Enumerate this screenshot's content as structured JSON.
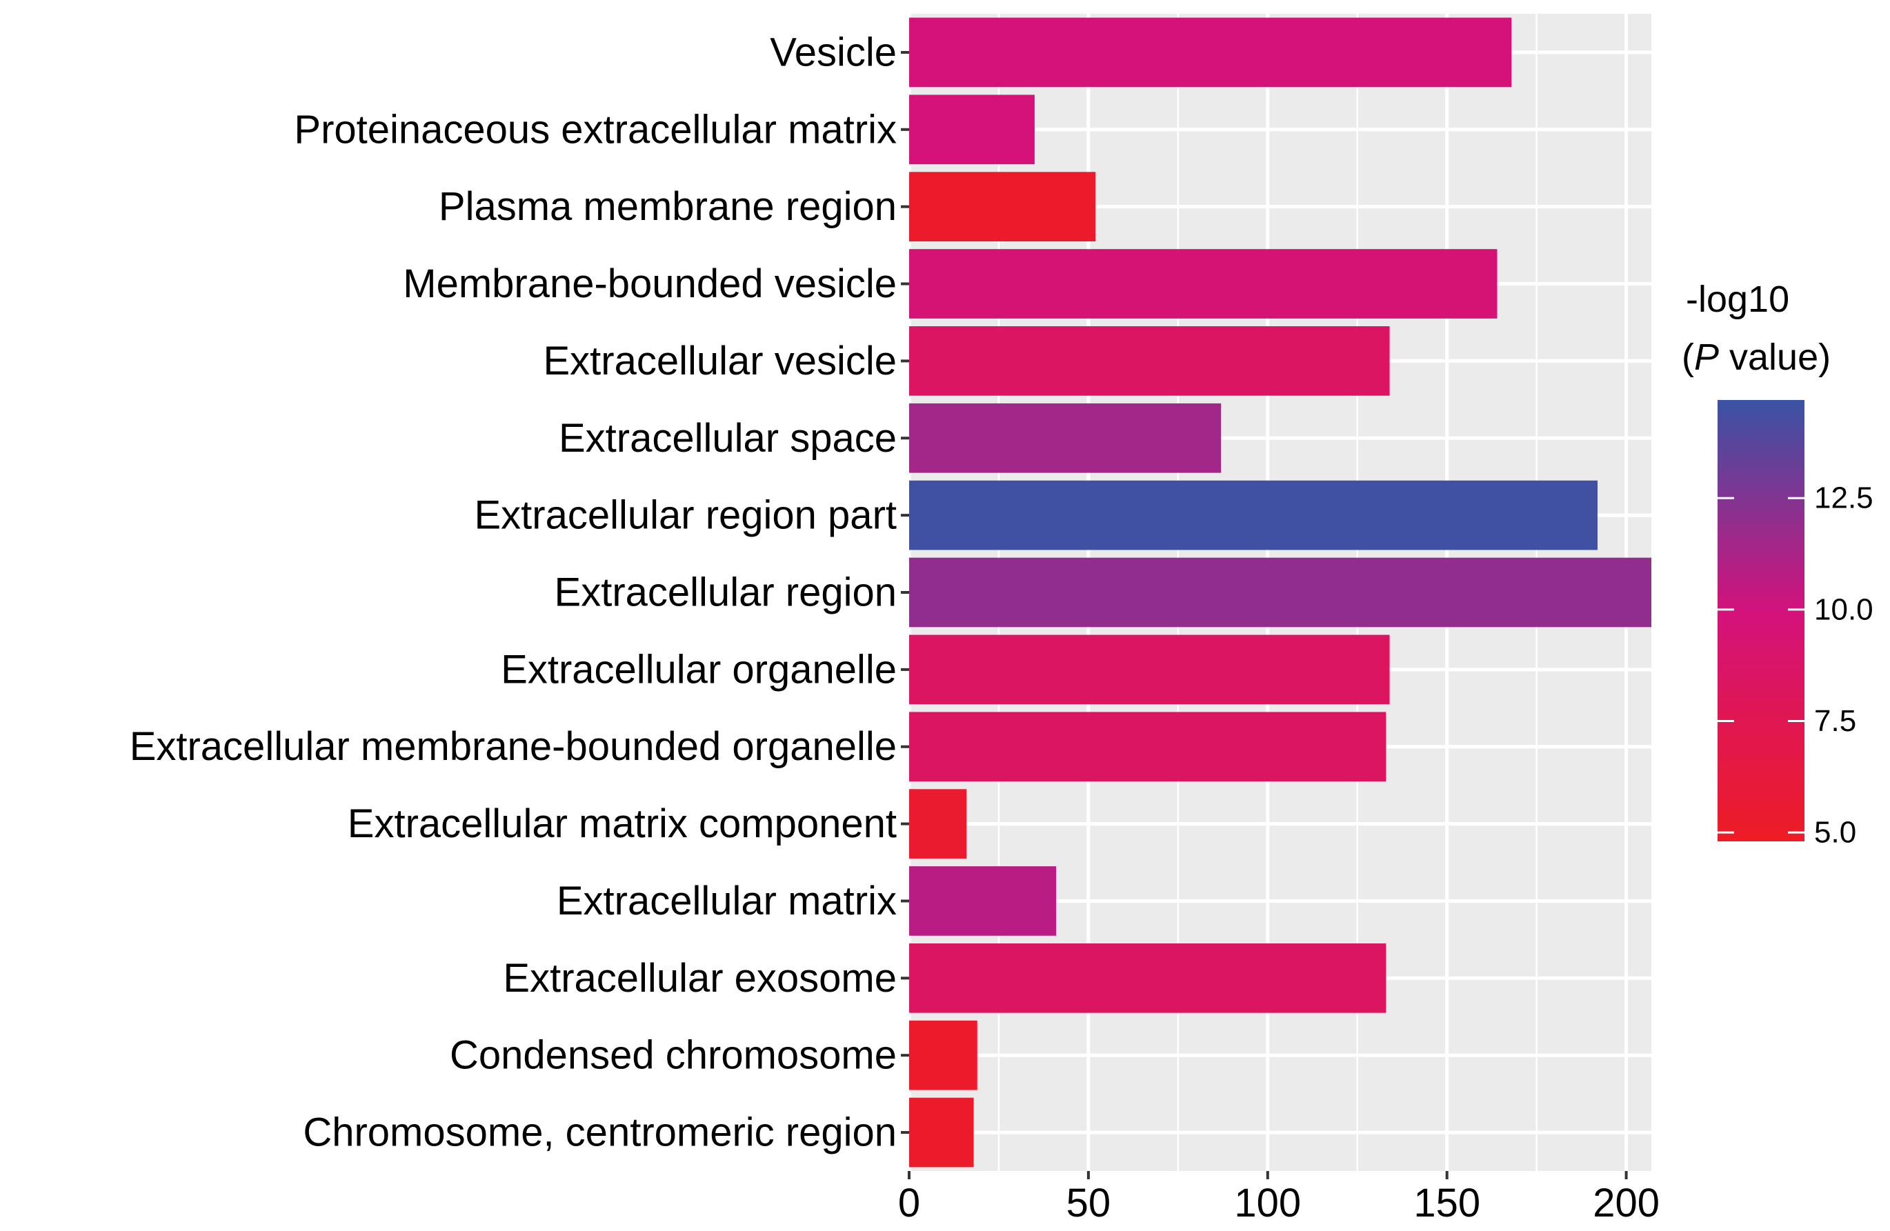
{
  "chart_data": {
    "type": "bar",
    "orientation": "horizontal",
    "categories": [
      "Vesicle",
      "Proteinaceous extracellular matrix",
      "Plasma membrane region",
      "Membrane-bounded vesicle",
      "Extracellular vesicle",
      "Extracellular space",
      "Extracellular region part",
      "Extracellular region",
      "Extracellular organelle",
      "Extracellular membrane-bounded organelle",
      "Extracellular matrix component",
      "Extracellular matrix",
      "Extracellular exosome",
      "Condensed chromosome",
      "Chromosome, centromeric region"
    ],
    "values": [
      168,
      35,
      52,
      164,
      134,
      87,
      192,
      207,
      134,
      133,
      16,
      41,
      133,
      19,
      18
    ],
    "color_values": [
      9.8,
      9.9,
      5.2,
      9.6,
      8.4,
      11.5,
      14.5,
      12.0,
      8.3,
      8.3,
      5.4,
      10.8,
      8.3,
      5.2,
      5.2
    ],
    "xlim": [
      0,
      207
    ],
    "xticks": [
      0,
      50,
      100,
      150,
      200
    ],
    "xlabel": "",
    "ylabel": "",
    "title": "",
    "grid": true,
    "panel_background": "#EBEBEB",
    "gridline_color": "#FFFFFF",
    "legend": {
      "title_line1": "-log10",
      "title_line2_italic": "P",
      "title_line2_rest": " value)",
      "title_line2_open": "(",
      "placement": "right",
      "range": [
        4.8,
        14.7
      ],
      "ticks": [
        5.0,
        7.5,
        10.0,
        12.5
      ],
      "tick_labels": [
        "5.0",
        "7.5",
        "10.0",
        "12.5"
      ],
      "gradient_stops": [
        {
          "value": 4.8,
          "color": "#EE1C25"
        },
        {
          "value": 10.0,
          "color": "#D3127C"
        },
        {
          "value": 14.7,
          "color": "#3953A4"
        }
      ]
    }
  }
}
